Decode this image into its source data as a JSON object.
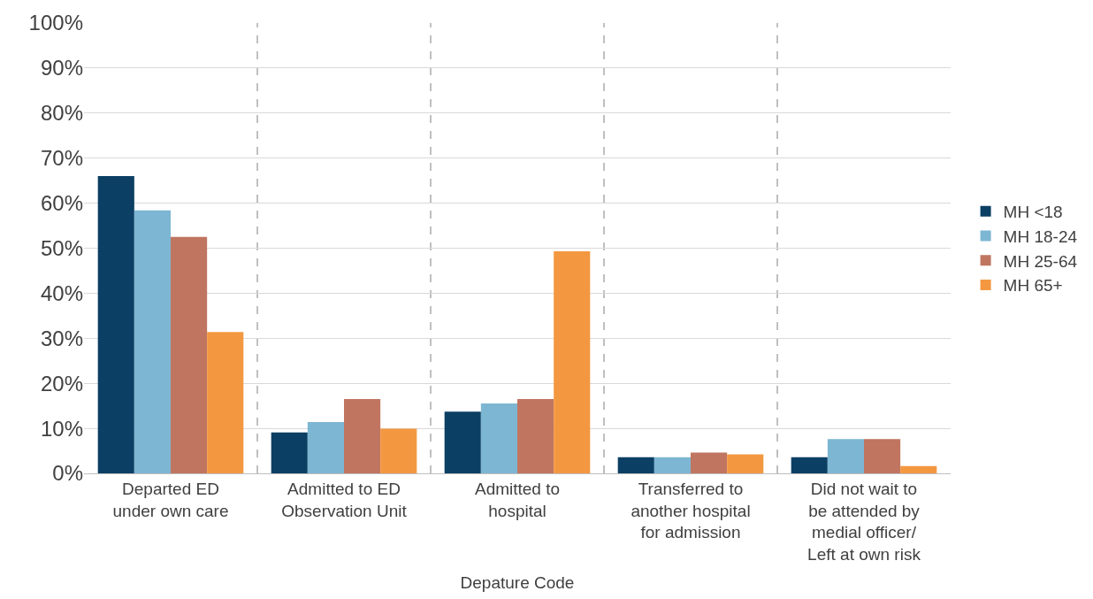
{
  "chart_data": {
    "type": "bar",
    "xlabel": "Depature Code",
    "categories": [
      "Departed ED\nunder own care",
      "Admitted to ED\nObservation Unit",
      "Admitted to\nhospital",
      "Transferred to\nanother hospital\nfor admission",
      "Did not wait to\nbe attended by\nmedial officer/\nLeft at own risk"
    ],
    "series": [
      {
        "name": "MH <18",
        "color": "#0b3f63",
        "values": [
          66,
          9.1,
          13.7,
          3.6,
          3.6
        ]
      },
      {
        "name": "MH 18-24",
        "color": "#7db6d3",
        "values": [
          58.4,
          11.4,
          15.5,
          3.6,
          7.6
        ]
      },
      {
        "name": "MH 25-64",
        "color": "#c07561",
        "values": [
          52.5,
          16.5,
          16.5,
          4.6,
          7.6
        ]
      },
      {
        "name": "MH 65+",
        "color": "#f39841",
        "values": [
          31.4,
          9.9,
          49.3,
          4.2,
          1.6
        ]
      }
    ],
    "ylim": [
      0,
      100
    ],
    "yticks": [
      {
        "value": 0,
        "label": "0%"
      },
      {
        "value": 10,
        "label": "10%"
      },
      {
        "value": 20,
        "label": "20%"
      },
      {
        "value": 30,
        "label": "30%"
      },
      {
        "value": 40,
        "label": "40%"
      },
      {
        "value": 50,
        "label": "50%"
      },
      {
        "value": 60,
        "label": "60%"
      },
      {
        "value": 70,
        "label": "70%"
      },
      {
        "value": 80,
        "label": "80%"
      },
      {
        "value": 90,
        "label": "90%"
      },
      {
        "value": 100,
        "label": "100%"
      }
    ],
    "grid": true,
    "legend": "right"
  }
}
